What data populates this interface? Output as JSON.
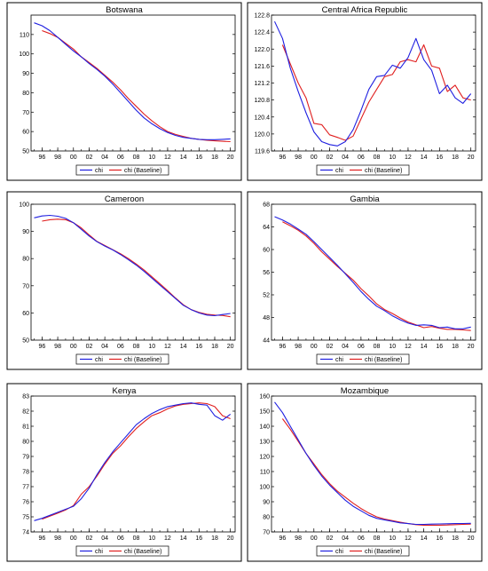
{
  "legend_labels": {
    "blue": "chi",
    "red": "chi (Baseline)"
  },
  "colors": {
    "chi": "#1f1fe0",
    "baseline": "#e01f1f"
  },
  "chart_data": [
    {
      "type": "line",
      "title": "Botswana",
      "x": [
        1995,
        1996,
        1997,
        1998,
        1999,
        2000,
        2001,
        2002,
        2003,
        2004,
        2005,
        2006,
        2007,
        2008,
        2009,
        2010,
        2011,
        2012,
        2013,
        2014,
        2015,
        2016,
        2017,
        2018,
        2019,
        2020
      ],
      "xticks": [
        "96",
        "98",
        "00",
        "02",
        "04",
        "06",
        "08",
        "10",
        "12",
        "14",
        "16",
        "18",
        "20"
      ],
      "ylim": [
        50,
        120
      ],
      "yticks": [
        50,
        60,
        70,
        80,
        90,
        100,
        110
      ],
      "legend": "bottom",
      "series": [
        {
          "name": "chi",
          "values": [
            116,
            114.5,
            112,
            108.5,
            105,
            101.5,
            98.5,
            95,
            92,
            88.5,
            84.5,
            80,
            75.5,
            71,
            67,
            64,
            61.5,
            59.5,
            58,
            57,
            56.5,
            56,
            55.8,
            55.8,
            56,
            56.2
          ]
        },
        {
          "name": "chi (Baseline)",
          "values": [
            null,
            112,
            110.5,
            108.5,
            105.5,
            102.5,
            98.5,
            95.5,
            92.5,
            89,
            85.5,
            81.5,
            77,
            73,
            69,
            65.5,
            62.5,
            60,
            58.5,
            57.5,
            56.5,
            56,
            55.5,
            55.2,
            55,
            54.8
          ]
        }
      ]
    },
    {
      "type": "line",
      "title": "Central Africa Republic",
      "x": [
        1995,
        1996,
        1997,
        1998,
        1999,
        2000,
        2001,
        2002,
        2003,
        2004,
        2005,
        2006,
        2007,
        2008,
        2009,
        2010,
        2011,
        2012,
        2013,
        2014,
        2015,
        2016,
        2017,
        2018,
        2019,
        2020
      ],
      "xticks": [
        "96",
        "98",
        "00",
        "02",
        "04",
        "06",
        "08",
        "10",
        "12",
        "14",
        "16",
        "18",
        "20"
      ],
      "ylim": [
        119.6,
        122.8
      ],
      "yticks": [
        119.6,
        120.0,
        120.4,
        120.8,
        121.2,
        121.6,
        122.0,
        122.4,
        122.8
      ],
      "legend": "bottom",
      "series": [
        {
          "name": "chi",
          "values": [
            122.65,
            122.25,
            121.55,
            121.0,
            120.5,
            120.05,
            119.82,
            119.75,
            119.72,
            119.82,
            120.1,
            120.55,
            121.05,
            121.35,
            121.38,
            121.62,
            121.55,
            121.8,
            122.25,
            121.75,
            121.5,
            120.95,
            121.15,
            120.85,
            120.72,
            120.95
          ]
        },
        {
          "name": "chi (Baseline)",
          "values": [
            null,
            122.1,
            121.65,
            121.2,
            120.85,
            120.25,
            120.22,
            119.98,
            119.92,
            119.85,
            119.95,
            120.35,
            120.75,
            121.05,
            121.35,
            121.4,
            121.7,
            121.75,
            121.7,
            122.1,
            121.6,
            121.55,
            121.0,
            121.15,
            120.85,
            120.8
          ]
        }
      ]
    },
    {
      "type": "line",
      "title": "Cameroon",
      "x": [
        1995,
        1996,
        1997,
        1998,
        1999,
        2000,
        2001,
        2002,
        2003,
        2004,
        2005,
        2006,
        2007,
        2008,
        2009,
        2010,
        2011,
        2012,
        2013,
        2014,
        2015,
        2016,
        2017,
        2018,
        2019,
        2020
      ],
      "xticks": [
        "96",
        "98",
        "00",
        "02",
        "04",
        "06",
        "08",
        "10",
        "12",
        "14",
        "16",
        "18",
        "20"
      ],
      "ylim": [
        50,
        100
      ],
      "yticks": [
        50,
        60,
        70,
        80,
        90,
        100
      ],
      "legend": "bottom",
      "series": [
        {
          "name": "chi",
          "values": [
            95,
            95.7,
            95.9,
            95.6,
            94.8,
            93.2,
            90.8,
            88.3,
            86.2,
            84.6,
            83.2,
            81.5,
            79.6,
            77.6,
            75.3,
            72.8,
            70.3,
            67.8,
            65.3,
            62.8,
            61.2,
            60,
            59.2,
            59,
            59.4,
            59.8
          ]
        },
        {
          "name": "chi (Baseline)",
          "values": [
            null,
            93.8,
            94.3,
            94.5,
            94.3,
            93.2,
            91.3,
            88.7,
            86.3,
            84.8,
            83.3,
            81.8,
            80,
            78,
            75.8,
            73.3,
            70.8,
            68.2,
            65.5,
            63,
            61.2,
            60.2,
            59.5,
            59.2,
            59.1,
            58.6
          ]
        }
      ]
    },
    {
      "type": "line",
      "title": "Gambia",
      "x": [
        1995,
        1996,
        1997,
        1998,
        1999,
        2000,
        2001,
        2002,
        2003,
        2004,
        2005,
        2006,
        2007,
        2008,
        2009,
        2010,
        2011,
        2012,
        2013,
        2014,
        2015,
        2016,
        2017,
        2018,
        2019,
        2020
      ],
      "xticks": [
        "96",
        "98",
        "00",
        "02",
        "04",
        "06",
        "08",
        "10",
        "12",
        "14",
        "16",
        "18",
        "20"
      ],
      "ylim": [
        44,
        68
      ],
      "yticks": [
        44,
        48,
        52,
        56,
        60,
        64,
        68
      ],
      "legend": "bottom",
      "series": [
        {
          "name": "chi",
          "values": [
            65.8,
            65.2,
            64.5,
            63.6,
            62.7,
            61.4,
            60,
            58.6,
            57.2,
            55.7,
            54.2,
            52.6,
            51.2,
            50,
            49.2,
            48.3,
            47.6,
            47,
            46.6,
            46.7,
            46.6,
            46.2,
            46.3,
            46,
            46,
            46.3
          ]
        },
        {
          "name": "chi (Baseline)",
          "values": [
            null,
            64.9,
            64.2,
            63.4,
            62.4,
            61.1,
            59.6,
            58.3,
            57,
            55.8,
            54.6,
            53.1,
            51.8,
            50.4,
            49.4,
            48.7,
            47.9,
            47.2,
            46.7,
            46.2,
            46.4,
            46.1,
            45.9,
            45.9,
            45.8,
            45.7
          ]
        }
      ]
    },
    {
      "type": "line",
      "title": "Kenya",
      "x": [
        1995,
        1996,
        1997,
        1998,
        1999,
        2000,
        2001,
        2002,
        2003,
        2004,
        2005,
        2006,
        2007,
        2008,
        2009,
        2010,
        2011,
        2012,
        2013,
        2014,
        2015,
        2016,
        2017,
        2018,
        2019,
        2020
      ],
      "xticks": [
        "96",
        "98",
        "00",
        "02",
        "04",
        "06",
        "08",
        "10",
        "12",
        "14",
        "16",
        "18",
        "20"
      ],
      "ylim": [
        74,
        83
      ],
      "yticks": [
        74,
        75,
        76,
        77,
        78,
        79,
        80,
        81,
        82,
        83
      ],
      "legend": "bottom",
      "series": [
        {
          "name": "chi",
          "values": [
            74.75,
            74.9,
            75.1,
            75.3,
            75.5,
            75.7,
            76.2,
            76.9,
            77.8,
            78.6,
            79.3,
            79.9,
            80.5,
            81.1,
            81.5,
            81.85,
            82.1,
            82.3,
            82.4,
            82.5,
            82.55,
            82.45,
            82.4,
            81.7,
            81.4,
            81.8
          ]
        },
        {
          "name": "chi (Baseline)",
          "values": [
            null,
            74.85,
            75.05,
            75.25,
            75.45,
            75.75,
            76.5,
            77.0,
            77.7,
            78.5,
            79.2,
            79.7,
            80.3,
            80.85,
            81.3,
            81.7,
            81.9,
            82.15,
            82.35,
            82.45,
            82.5,
            82.55,
            82.5,
            82.3,
            81.7,
            81.5
          ]
        }
      ]
    },
    {
      "type": "line",
      "title": "Mozambique",
      "x": [
        1995,
        1996,
        1997,
        1998,
        1999,
        2000,
        2001,
        2002,
        2003,
        2004,
        2005,
        2006,
        2007,
        2008,
        2009,
        2010,
        2011,
        2012,
        2013,
        2014,
        2015,
        2016,
        2017,
        2018,
        2019,
        2020
      ],
      "xticks": [
        "96",
        "98",
        "00",
        "02",
        "04",
        "06",
        "08",
        "10",
        "12",
        "14",
        "16",
        "18",
        "20"
      ],
      "ylim": [
        70,
        160
      ],
      "yticks": [
        70,
        80,
        90,
        100,
        110,
        120,
        130,
        140,
        150,
        160
      ],
      "legend": "bottom",
      "series": [
        {
          "name": "chi",
          "values": [
            156,
            149,
            140,
            131,
            122,
            114,
            107,
            101,
            96,
            91,
            87,
            84,
            81,
            79,
            78,
            77,
            76,
            75.5,
            75,
            75,
            75.2,
            75.3,
            75.4,
            75.5,
            75.6,
            75.7
          ]
        },
        {
          "name": "chi (Baseline)",
          "values": [
            null,
            145,
            138,
            130,
            122,
            115,
            108,
            102,
            97,
            93,
            89,
            85.5,
            82.5,
            80,
            78.5,
            77.5,
            76.5,
            75.5,
            74.8,
            74.5,
            74.5,
            74.5,
            74.6,
            74.8,
            75,
            75.2
          ]
        }
      ]
    }
  ]
}
